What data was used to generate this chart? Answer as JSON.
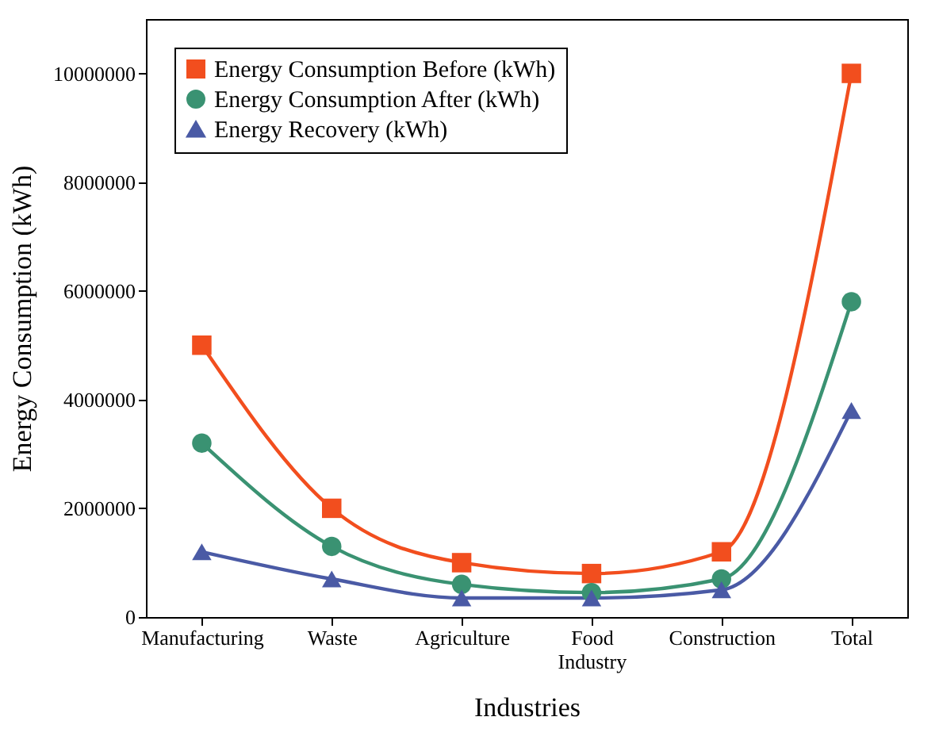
{
  "chart_data": {
    "type": "line",
    "xlabel": "Industries",
    "ylabel": "Energy Consumption (kWh)",
    "categories": [
      "Manufacturing",
      "Waste",
      "Agriculture",
      "Food Industry",
      "Construction",
      "Total"
    ],
    "series": [
      {
        "name": "Energy Consumption Before (kWh)",
        "color": "#f24e1e",
        "marker": "square",
        "values": [
          5000000,
          2000000,
          1000000,
          800000,
          1200000,
          10000000
        ]
      },
      {
        "name": "Energy Consumption After (kWh)",
        "color": "#3a9272",
        "marker": "circle",
        "values": [
          3200000,
          1300000,
          600000,
          450000,
          700000,
          5800000
        ]
      },
      {
        "name": "Energy Recovery (kWh)",
        "color": "#4a5aa5",
        "marker": "triangle",
        "values": [
          1200000,
          700000,
          350000,
          350000,
          500000,
          3800000
        ]
      }
    ],
    "ylim": [
      0,
      11000000
    ],
    "yticks": [
      0,
      2000000,
      4000000,
      6000000,
      8000000,
      10000000
    ],
    "grid": false,
    "legend": "top left",
    "line_style": "solid"
  }
}
